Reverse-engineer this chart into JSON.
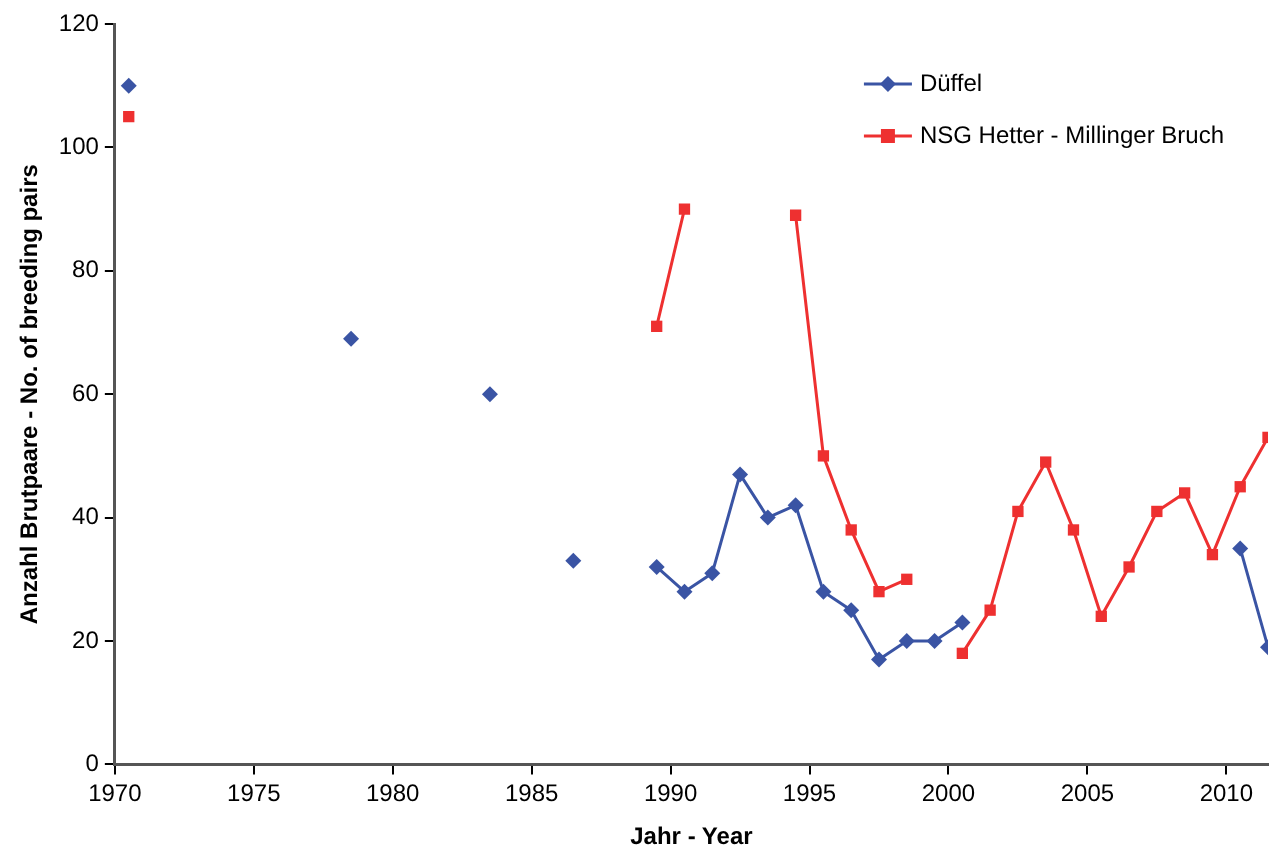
{
  "chart_data": {
    "type": "line",
    "xlabel": "Jahr - Year",
    "ylabel": "Anzahl Brutpaare - No. of breeding pairs",
    "xlim": [
      1970,
      2011.5
    ],
    "xticks": [
      1970,
      1975,
      1980,
      1985,
      1990,
      1995,
      2000,
      2005,
      2010
    ],
    "ylim": [
      0,
      120
    ],
    "yticks": [
      0,
      20,
      40,
      60,
      80,
      100,
      120
    ],
    "grid": false,
    "legend": "top right",
    "series": [
      {
        "name": "Düffel",
        "color": "#3a54a4",
        "marker": "diamond",
        "x": [
          1970.5,
          1971.5,
          1972.5,
          1973.5,
          1974.5,
          1975.5,
          1976.5,
          1977.5,
          1978.5,
          1979.5,
          1980.5,
          1981.5,
          1982.5,
          1983.5,
          1984.5,
          1985.5,
          1986.5,
          1987.5,
          1988.5,
          1989.5,
          1990.5,
          1991.5,
          1992.5,
          1993.5,
          1994.5,
          1995.5,
          1996.5,
          1997.5,
          1998.5,
          1999.5,
          2000.5,
          2001.5,
          2002.5,
          2003.5,
          2004.5,
          2005.5,
          2006.5,
          2007.5,
          2008.5,
          2009.5,
          2010.5,
          2011.5
        ],
        "values": [
          110,
          null,
          null,
          null,
          null,
          null,
          null,
          null,
          69,
          null,
          null,
          null,
          null,
          60,
          null,
          null,
          33,
          null,
          null,
          32,
          28,
          31,
          47,
          40,
          42,
          28,
          25,
          17,
          20,
          20,
          23,
          null,
          null,
          null,
          null,
          null,
          null,
          null,
          null,
          null,
          35,
          19
        ]
      },
      {
        "name": "NSG Hetter - Millinger Bruch",
        "color": "#ee3030",
        "marker": "square",
        "x": [
          1970.5,
          1971.5,
          1972.5,
          1973.5,
          1974.5,
          1975.5,
          1976.5,
          1977.5,
          1978.5,
          1979.5,
          1980.5,
          1981.5,
          1982.5,
          1983.5,
          1984.5,
          1985.5,
          1986.5,
          1987.5,
          1988.5,
          1989.5,
          1990.5,
          1991.5,
          1992.5,
          1993.5,
          1994.5,
          1995.5,
          1996.5,
          1997.5,
          1998.5,
          1999.5,
          2000.5,
          2001.5,
          2002.5,
          2003.5,
          2004.5,
          2005.5,
          2006.5,
          2007.5,
          2008.5,
          2009.5,
          2010.5,
          2011.5
        ],
        "values": [
          105,
          null,
          null,
          null,
          null,
          null,
          null,
          null,
          null,
          null,
          null,
          null,
          null,
          null,
          null,
          null,
          null,
          null,
          null,
          71,
          90,
          null,
          null,
          null,
          89,
          50,
          38,
          28,
          30,
          null,
          18,
          25,
          41,
          49,
          38,
          24,
          32,
          41,
          44,
          34,
          45,
          53
        ]
      }
    ]
  }
}
